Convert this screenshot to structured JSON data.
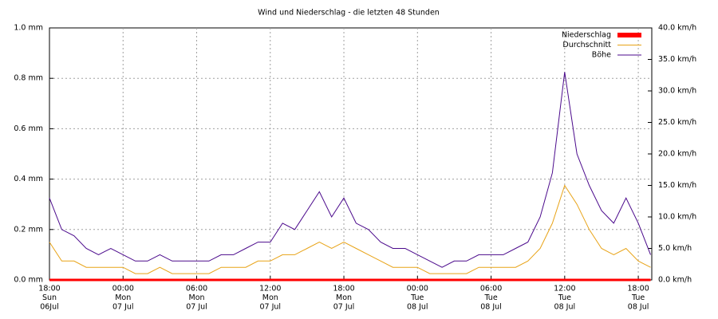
{
  "chart_data": {
    "type": "line",
    "title": "Wind und Niederschlag - die letzten 48 Stunden",
    "x": [
      0,
      1,
      2,
      3,
      4,
      5,
      6,
      7,
      8,
      9,
      10,
      11,
      12,
      13,
      14,
      15,
      16,
      17,
      18,
      19,
      20,
      21,
      22,
      23,
      24,
      25,
      26,
      27,
      28,
      29,
      30,
      31,
      32,
      33,
      34,
      35,
      36,
      37,
      38,
      39,
      40,
      41,
      42,
      43,
      44,
      45,
      46,
      47,
      48,
      49
    ],
    "xlim": [
      0,
      49.1
    ],
    "xticks": [
      {
        "value": 0,
        "label": [
          "18:00",
          "Sun",
          "06Jul"
        ]
      },
      {
        "value": 6,
        "label": [
          "00:00",
          "Mon",
          "07 Jul"
        ]
      },
      {
        "value": 12,
        "label": [
          "06:00",
          "Mon",
          "07 Jul"
        ]
      },
      {
        "value": 18,
        "label": [
          "12:00",
          "Mon",
          "07 Jul"
        ]
      },
      {
        "value": 24,
        "label": [
          "18:00",
          "Mon",
          "07 Jul"
        ]
      },
      {
        "value": 30,
        "label": [
          "00:00",
          "Tue",
          "08 Jul"
        ]
      },
      {
        "value": 36,
        "label": [
          "06:00",
          "Tue",
          "08 Jul"
        ]
      },
      {
        "value": 42,
        "label": [
          "12:00",
          "Tue",
          "08 Jul"
        ]
      },
      {
        "value": 48,
        "label": [
          "18:00",
          "Tue",
          "08 Jul"
        ]
      }
    ],
    "ylim": [
      0,
      1
    ],
    "yticks": [
      {
        "value": 0,
        "label": "0.0 mm"
      },
      {
        "value": 0.2,
        "label": "0.2 mm"
      },
      {
        "value": 0.4,
        "label": "0.4 mm"
      },
      {
        "value": 0.6,
        "label": "0.6 mm"
      },
      {
        "value": 0.8,
        "label": "0.8 mm"
      },
      {
        "value": 1,
        "label": "1.0 mm"
      }
    ],
    "y2lim": [
      0,
      40
    ],
    "y2ticks": [
      {
        "value": 0,
        "label": "0.0 km/h"
      },
      {
        "value": 5,
        "label": "5.0 km/h"
      },
      {
        "value": 10,
        "label": "10.0 km/h"
      },
      {
        "value": 15,
        "label": "15.0 km/h"
      },
      {
        "value": 20,
        "label": "20.0 km/h"
      },
      {
        "value": 25,
        "label": "25.0 km/h"
      },
      {
        "value": 30,
        "label": "30.0 km/h"
      },
      {
        "value": 35,
        "label": "35.0 km/h"
      },
      {
        "value": 40,
        "label": "40.0 km/h"
      }
    ],
    "grid": true,
    "legend": "top-right",
    "series": [
      {
        "name": "Niederschlag",
        "color": "#ff0000",
        "axis": "y",
        "values": [
          0,
          0,
          0,
          0,
          0,
          0,
          0,
          0,
          0,
          0,
          0,
          0,
          0,
          0,
          0,
          0,
          0,
          0,
          0,
          0,
          0,
          0,
          0,
          0,
          0,
          0,
          0,
          0,
          0,
          0,
          0,
          0,
          0,
          0,
          0,
          0,
          0,
          0,
          0,
          0,
          0,
          0,
          0,
          0,
          0,
          0,
          0,
          0,
          0,
          0
        ]
      },
      {
        "name": "Durchschnitt",
        "color": "#e8a317",
        "axis": "y2",
        "values": [
          6,
          3,
          3,
          2,
          2,
          2,
          2,
          1,
          1,
          2,
          1,
          1,
          1,
          1,
          2,
          2,
          2,
          3,
          3,
          4,
          4,
          5,
          6,
          5,
          6,
          5,
          4,
          3,
          2,
          2,
          2,
          1,
          1,
          1,
          1,
          2,
          2,
          2,
          2,
          3,
          5,
          9,
          15,
          12,
          8,
          5,
          4,
          5,
          3,
          2
        ]
      },
      {
        "name": "Böhe",
        "color": "#4b0a8c",
        "axis": "y2",
        "values": [
          13,
          8,
          7,
          5,
          4,
          5,
          4,
          3,
          3,
          4,
          3,
          3,
          3,
          3,
          4,
          4,
          5,
          6,
          6,
          9,
          8,
          11,
          14,
          10,
          13,
          9,
          8,
          6,
          5,
          5,
          4,
          3,
          2,
          3,
          3,
          4,
          4,
          4,
          5,
          6,
          10,
          17,
          33,
          20,
          15,
          11,
          9,
          13,
          9,
          4
        ]
      }
    ]
  }
}
